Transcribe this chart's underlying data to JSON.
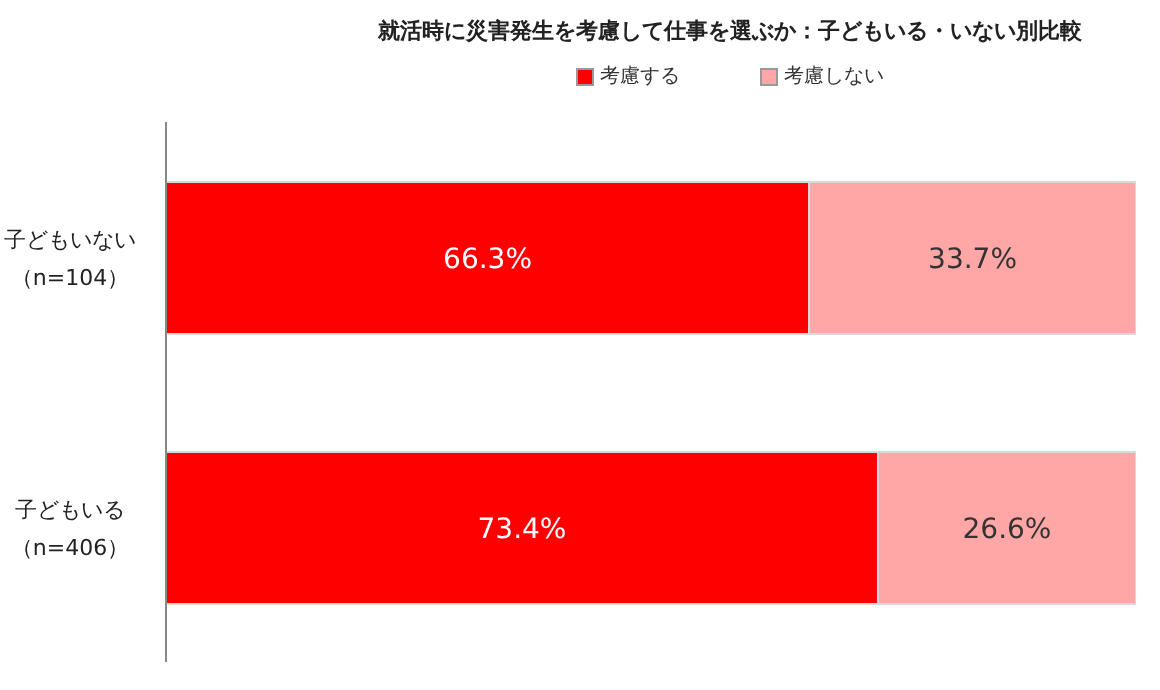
{
  "chart_data": {
    "type": "bar",
    "title": "就活時に災害発生を考慮して仕事を選ぶか：子どもいる・いない別比較",
    "orientation": "horizontal",
    "stacked": true,
    "legend": "top",
    "categories": [
      "子どもいない（n=104）",
      "子どもいる（n=406）"
    ],
    "series": [
      {
        "name": "考慮する",
        "color": "#ff0000",
        "values": [
          66.3,
          73.4
        ],
        "value_labels": [
          "66.3%",
          "73.4%"
        ]
      },
      {
        "name": "考慮しない",
        "color": "#ffa6a6",
        "values": [
          33.7,
          26.6
        ],
        "value_labels": [
          "33.7%",
          "26.6%"
        ]
      }
    ]
  }
}
